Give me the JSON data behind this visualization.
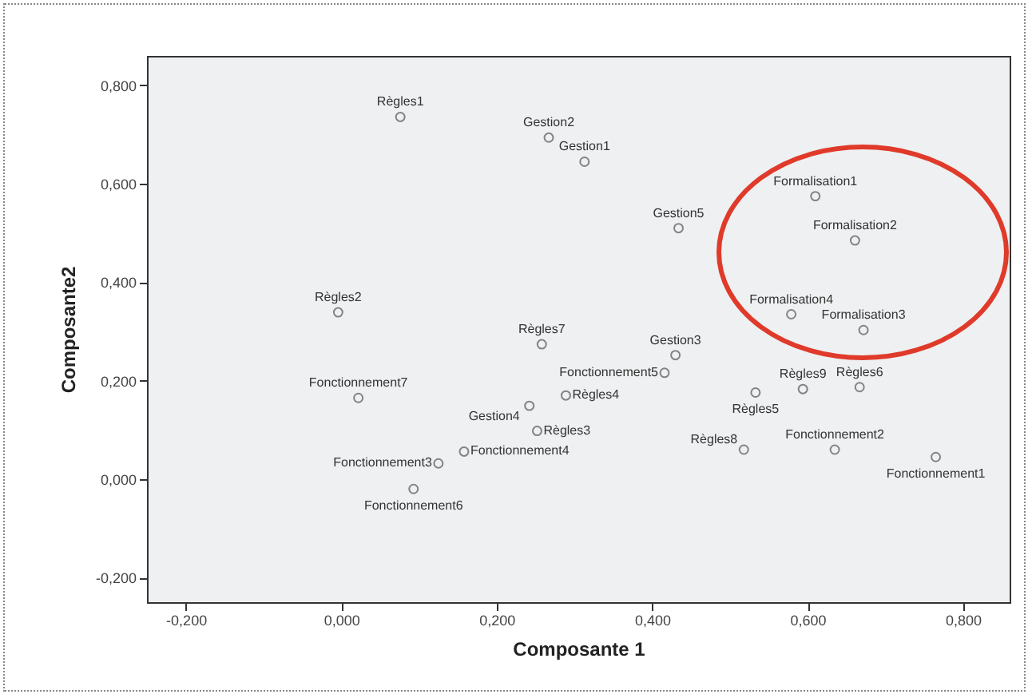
{
  "chart_data": {
    "type": "scatter",
    "xlabel": "Composante 1",
    "ylabel": "Composante2",
    "marker": "circle",
    "color": "#555555",
    "grid": false,
    "legend": false,
    "xlim": [
      -0.25,
      0.86
    ],
    "ylim": [
      -0.25,
      0.86
    ],
    "xticks": [
      {
        "value": -0.2,
        "label": "-0,200"
      },
      {
        "value": 0,
        "label": "0,000"
      },
      {
        "value": 0.2,
        "label": "0,200"
      },
      {
        "value": 0.4,
        "label": "0,400"
      },
      {
        "value": 0.6,
        "label": "0,600"
      },
      {
        "value": 0.8,
        "label": "0,800"
      }
    ],
    "yticks": [
      {
        "value": -0.2,
        "label": "-0,200"
      },
      {
        "value": 0,
        "label": "0,000"
      },
      {
        "value": 0.2,
        "label": "0,200"
      },
      {
        "value": 0.4,
        "label": "0,400"
      },
      {
        "value": 0.6,
        "label": "0,600"
      },
      {
        "value": 0.8,
        "label": "0,800"
      }
    ],
    "x": [
      0.076,
      0.267,
      0.313,
      0.434,
      0.61,
      0.661,
      0.579,
      0.672,
      -0.004,
      0.258,
      0.022,
      0.242,
      0.125,
      0.093,
      0.158,
      0.252,
      0.289,
      0.416,
      0.43,
      0.533,
      0.594,
      0.667,
      0.518,
      0.635,
      0.765
    ],
    "values": [
      0.736,
      0.694,
      0.645,
      0.51,
      0.575,
      0.485,
      0.335,
      0.303,
      0.339,
      0.274,
      0.165,
      0.149,
      0.032,
      -0.02,
      0.056,
      0.098,
      0.17,
      0.216,
      0.252,
      0.176,
      0.183,
      0.187,
      0.06,
      0.06,
      0.045
    ],
    "annotations": [
      {
        "text": "Règles1",
        "x": 0.076,
        "y": 0.736
      },
      {
        "text": "Gestion2",
        "x": 0.267,
        "y": 0.694
      },
      {
        "text": "Gestion1",
        "x": 0.313,
        "y": 0.645
      },
      {
        "text": "Gestion5",
        "x": 0.434,
        "y": 0.51
      },
      {
        "text": "Formalisation1",
        "x": 0.61,
        "y": 0.575
      },
      {
        "text": "Formalisation2",
        "x": 0.661,
        "y": 0.485
      },
      {
        "text": "Formalisation4",
        "x": 0.579,
        "y": 0.335
      },
      {
        "text": "Formalisation3",
        "x": 0.672,
        "y": 0.303
      },
      {
        "text": "Règles2",
        "x": -0.004,
        "y": 0.339
      },
      {
        "text": "Règles7",
        "x": 0.258,
        "y": 0.274
      },
      {
        "text": "Fonctionnement7",
        "x": 0.022,
        "y": 0.165
      },
      {
        "text": "Gestion4",
        "x": 0.242,
        "y": 0.149
      },
      {
        "text": "Fonctionnement3",
        "x": 0.125,
        "y": 0.032
      },
      {
        "text": "Fonctionnement6",
        "x": 0.093,
        "y": -0.02
      },
      {
        "text": "Fonctionnement4",
        "x": 0.158,
        "y": 0.056
      },
      {
        "text": "Règles3",
        "x": 0.252,
        "y": 0.098
      },
      {
        "text": "Règles4",
        "x": 0.289,
        "y": 0.17
      },
      {
        "text": "Fonctionnement5",
        "x": 0.416,
        "y": 0.216
      },
      {
        "text": "Gestion3",
        "x": 0.43,
        "y": 0.252
      },
      {
        "text": "Règles5",
        "x": 0.533,
        "y": 0.176
      },
      {
        "text": "Règles9",
        "x": 0.594,
        "y": 0.183
      },
      {
        "text": "Règles6",
        "x": 0.667,
        "y": 0.187
      },
      {
        "text": "Règles8",
        "x": 0.518,
        "y": 0.06
      },
      {
        "text": "Fonctionnement2",
        "x": 0.635,
        "y": 0.06
      },
      {
        "text": "Fonctionnement1",
        "x": 0.765,
        "y": 0.045
      }
    ]
  }
}
